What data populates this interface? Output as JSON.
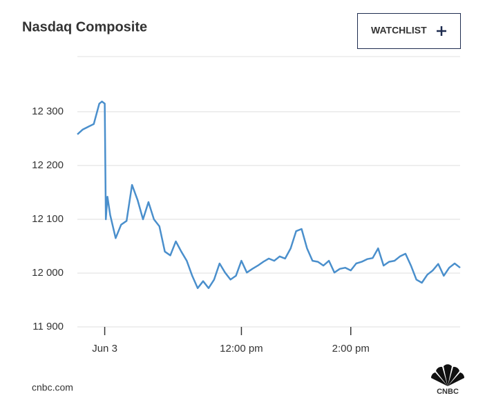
{
  "chart_data": {
    "type": "line",
    "title": "Nasdaq Composite",
    "button": "WATCHLIST",
    "source": "cnbc.com",
    "logo": "CNBC",
    "x": [
      9.0,
      9.1,
      9.2,
      9.3,
      9.4,
      9.45,
      9.5,
      9.52,
      9.55,
      9.6,
      9.7,
      9.8,
      9.9,
      10.0,
      10.1,
      10.2,
      10.3,
      10.4,
      10.5,
      10.6,
      10.7,
      10.8,
      10.9,
      11.0,
      11.1,
      11.2,
      11.3,
      11.4,
      11.5,
      11.6,
      11.7,
      11.8,
      11.9,
      12.0,
      12.1,
      12.2,
      12.3,
      12.4,
      12.5,
      12.6,
      12.7,
      12.8,
      12.9,
      13.0,
      13.1,
      13.2,
      13.3,
      13.4,
      13.5,
      13.6,
      13.7,
      13.8,
      13.9,
      14.0,
      14.1,
      14.2,
      14.3,
      14.4,
      14.5,
      14.6,
      14.7,
      14.8,
      14.9,
      15.0,
      15.1,
      15.2,
      15.3,
      15.4,
      15.5,
      15.6,
      15.7,
      15.8,
      15.9,
      16.0
    ],
    "series": [
      {
        "name": "Nasdaq Composite",
        "color": "#4a8fcc",
        "values": [
          12258,
          12267,
          12272,
          12277,
          12315,
          12319,
          12315,
          12100,
          12142,
          12108,
          12065,
          12090,
          12097,
          12164,
          12136,
          12100,
          12132,
          12100,
          12087,
          12040,
          12033,
          12059,
          12040,
          12023,
          11995,
          11972,
          11985,
          11972,
          11988,
          12018,
          12001,
          11988,
          11995,
          12023,
          12001,
          12008,
          12014,
          12021,
          12027,
          12023,
          12031,
          12027,
          12046,
          12078,
          12082,
          12046,
          12023,
          12021,
          12014,
          12023,
          12001,
          12008,
          12010,
          12005,
          12018,
          12021,
          12026,
          12028,
          12046,
          12014,
          12021,
          12023,
          12031,
          12036,
          12014,
          11988,
          11982,
          11997,
          12005,
          12017,
          11995,
          12010,
          12018,
          12010
        ]
      }
    ],
    "xlim": [
      9.0,
      16.0
    ],
    "xticks": [
      {
        "value": 9.5,
        "label": "Jun 3"
      },
      {
        "value": 12,
        "label": "12:00 pm"
      },
      {
        "value": 14,
        "label": "2:00 pm"
      }
    ],
    "ylim": [
      11900,
      12400
    ],
    "yticks": [
      {
        "value": 11900,
        "label": "11 900"
      },
      {
        "value": 12000,
        "label": "12 000"
      },
      {
        "value": 12100,
        "label": "12 100"
      },
      {
        "value": 12200,
        "label": "12 200"
      },
      {
        "value": 12300,
        "label": "12 300"
      }
    ],
    "grid": true
  }
}
